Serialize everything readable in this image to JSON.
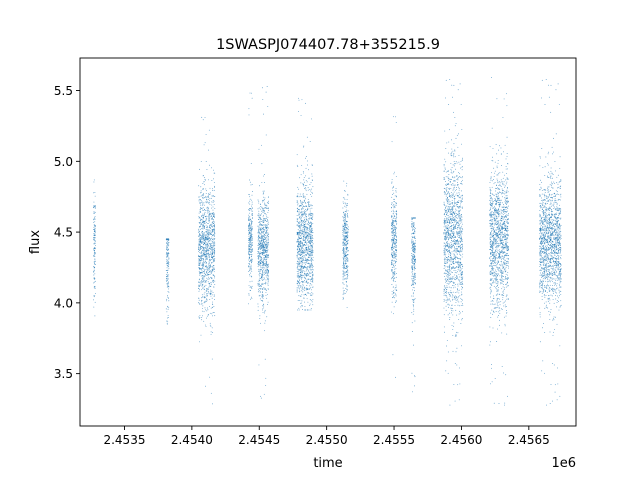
{
  "chart_data": {
    "type": "scatter",
    "title": "1SWASPJ074407.78+355215.9",
    "xlabel": "time",
    "ylabel": "flux",
    "x_offset_label": "1e6",
    "xlim": [
      2453170,
      2456850
    ],
    "ylim": [
      3.13,
      5.73
    ],
    "x_ticks": [
      2.4535,
      2.454,
      2.4545,
      2.455,
      2.4555,
      2.456,
      2.4565
    ],
    "x_tick_labels": [
      "2.4535",
      "2.4540",
      "2.4545",
      "2.4550",
      "2.4555",
      "2.4560",
      "2.4565"
    ],
    "y_ticks": [
      3.5,
      4.0,
      4.5,
      5.0,
      5.5
    ],
    "y_tick_labels": [
      "3.5",
      "4.0",
      "4.5",
      "5.0",
      "5.5"
    ],
    "grid": false,
    "marker_color": "#1f77b4",
    "series": [
      {
        "name": "",
        "observing_seasons": [
          {
            "t_start": 2453270,
            "t_end": 2453285,
            "flux_center": 4.4,
            "flux_spread": 0.25,
            "flux_min": 3.8,
            "flux_max": 5.05
          },
          {
            "t_start": 2453810,
            "t_end": 2453830,
            "flux_center": 4.35,
            "flux_spread": 0.25,
            "flux_min": 3.85,
            "flux_max": 4.45
          },
          {
            "t_start": 2454050,
            "t_end": 2454170,
            "flux_center": 4.38,
            "flux_spread": 0.3,
            "flux_min": 3.28,
            "flux_max": 5.4
          },
          {
            "t_start": 2454420,
            "t_end": 2454450,
            "flux_center": 4.42,
            "flux_spread": 0.22,
            "flux_min": 3.85,
            "flux_max": 5.6
          },
          {
            "t_start": 2454490,
            "t_end": 2454570,
            "flux_center": 4.38,
            "flux_spread": 0.25,
            "flux_min": 3.3,
            "flux_max": 5.58
          },
          {
            "t_start": 2454780,
            "t_end": 2454900,
            "flux_center": 4.4,
            "flux_spread": 0.28,
            "flux_min": 3.95,
            "flux_max": 5.45
          },
          {
            "t_start": 2455120,
            "t_end": 2455160,
            "flux_center": 4.42,
            "flux_spread": 0.22,
            "flux_min": 3.95,
            "flux_max": 4.95
          },
          {
            "t_start": 2455480,
            "t_end": 2455520,
            "flux_center": 4.42,
            "flux_spread": 0.25,
            "flux_min": 3.45,
            "flux_max": 5.45
          },
          {
            "t_start": 2455630,
            "t_end": 2455660,
            "flux_center": 4.35,
            "flux_spread": 0.25,
            "flux_min": 3.35,
            "flux_max": 4.6
          },
          {
            "t_start": 2455870,
            "t_end": 2456010,
            "flux_center": 4.45,
            "flux_spread": 0.38,
            "flux_min": 3.25,
            "flux_max": 5.6
          },
          {
            "t_start": 2456210,
            "t_end": 2456350,
            "flux_center": 4.45,
            "flux_spread": 0.32,
            "flux_min": 3.25,
            "flux_max": 5.6
          },
          {
            "t_start": 2456580,
            "t_end": 2456740,
            "flux_center": 4.42,
            "flux_spread": 0.3,
            "flux_min": 3.25,
            "flux_max": 5.6
          }
        ]
      }
    ]
  }
}
